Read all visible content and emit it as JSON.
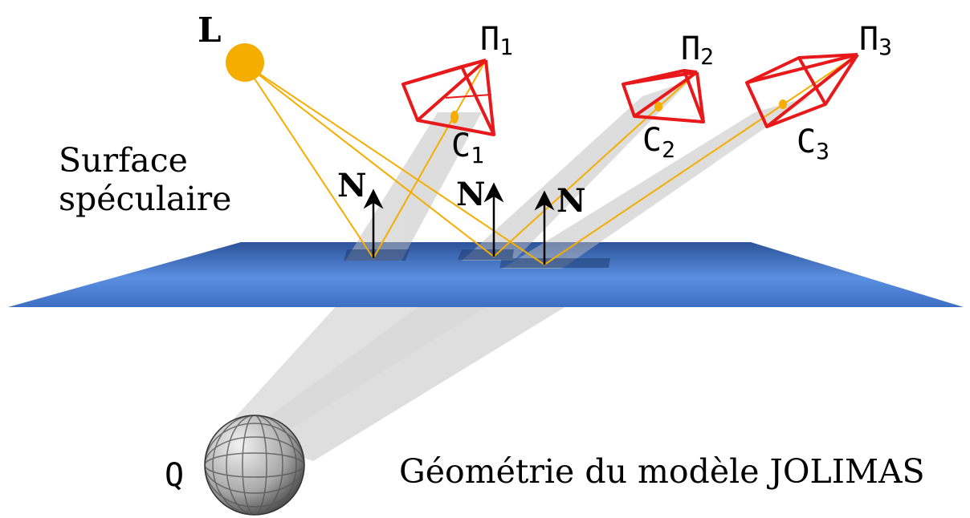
{
  "labels": {
    "light": "L",
    "surface_line1": "Surface",
    "surface_line2": "spéculaire",
    "normal": "N",
    "object": "Q",
    "caption": "Géométrie du modèle JOLIMAS"
  },
  "cameras": [
    {
      "plane_symbol": "Π",
      "plane_index": "1",
      "center_symbol": "C",
      "center_index": "1"
    },
    {
      "plane_symbol": "Π",
      "plane_index": "2",
      "center_symbol": "C",
      "center_index": "2"
    },
    {
      "plane_symbol": "Π",
      "plane_index": "3",
      "center_symbol": "C",
      "center_index": "3"
    }
  ],
  "colors": {
    "light_source": "#f5ad00",
    "rays": "#f5ad00",
    "camera_frame": "#e8191b",
    "surface_light": "#5a8fe0",
    "surface_dark": "#2f5aa6",
    "beam": "#c8c8c8",
    "normal_arrow": "#000000"
  }
}
